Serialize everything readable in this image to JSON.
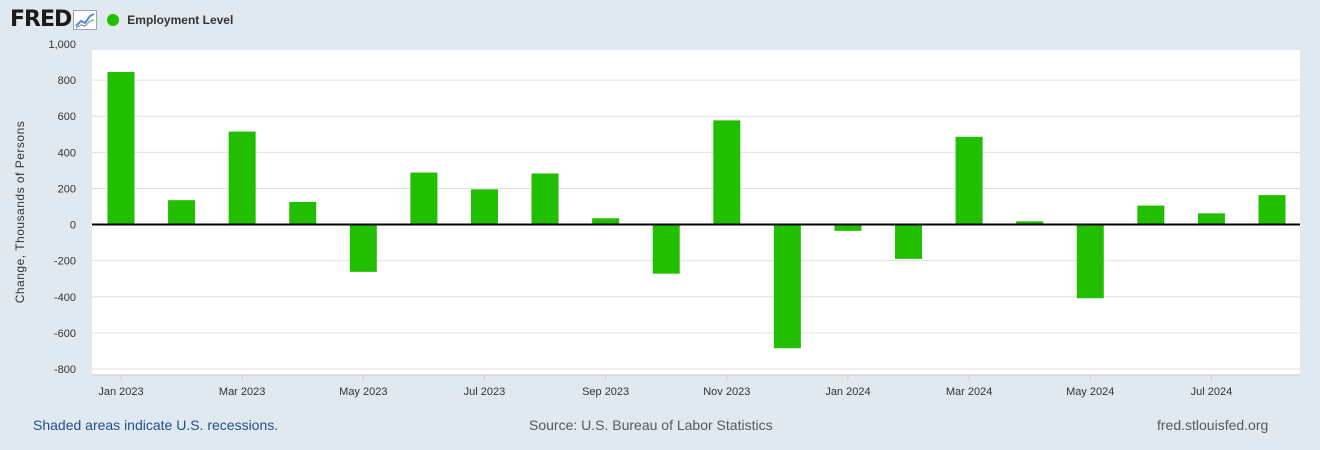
{
  "header": {
    "logo_text": "FRED",
    "series_label": "Employment Level",
    "series_color": "#22bf00"
  },
  "chart_data": {
    "type": "bar",
    "title": "",
    "series_name": "Employment Level",
    "ylabel": "Change, Thousands of Persons",
    "xlabel": "",
    "ylim": [
      -800,
      1000
    ],
    "yticks": [
      1000,
      800,
      600,
      400,
      200,
      0,
      -200,
      -400,
      -600,
      -800
    ],
    "ytick_labels": [
      "1,000",
      "800",
      "600",
      "400",
      "200",
      "0",
      "-200",
      "-400",
      "-600",
      "-800"
    ],
    "categories": [
      "Jan 2023",
      "Feb 2023",
      "Mar 2023",
      "Apr 2023",
      "May 2023",
      "Jun 2023",
      "Jul 2023",
      "Aug 2023",
      "Sep 2023",
      "Oct 2023",
      "Nov 2023",
      "Dec 2023",
      "Jan 2024",
      "Feb 2024",
      "Mar 2024",
      "Apr 2024",
      "May 2024",
      "Jun 2024",
      "Jul 2024",
      "Aug 2024"
    ],
    "values": [
      845,
      135,
      515,
      125,
      -262,
      288,
      195,
      283,
      35,
      -272,
      577,
      -685,
      -35,
      -190,
      486,
      18,
      -408,
      105,
      62,
      163
    ],
    "xtick_labels": [
      "Jan 2023",
      "Mar 2023",
      "May 2023",
      "Jul 2023",
      "Sep 2023",
      "Nov 2023",
      "Jan 2024",
      "Mar 2024",
      "May 2024",
      "Jul 2024"
    ],
    "grid": true,
    "bar_color": "#22bf00"
  },
  "footer": {
    "note": "Shaded areas indicate U.S. recessions.",
    "source": "Source: U.S. Bureau of Labor Statistics",
    "site": "fred.stlouisfed.org"
  }
}
